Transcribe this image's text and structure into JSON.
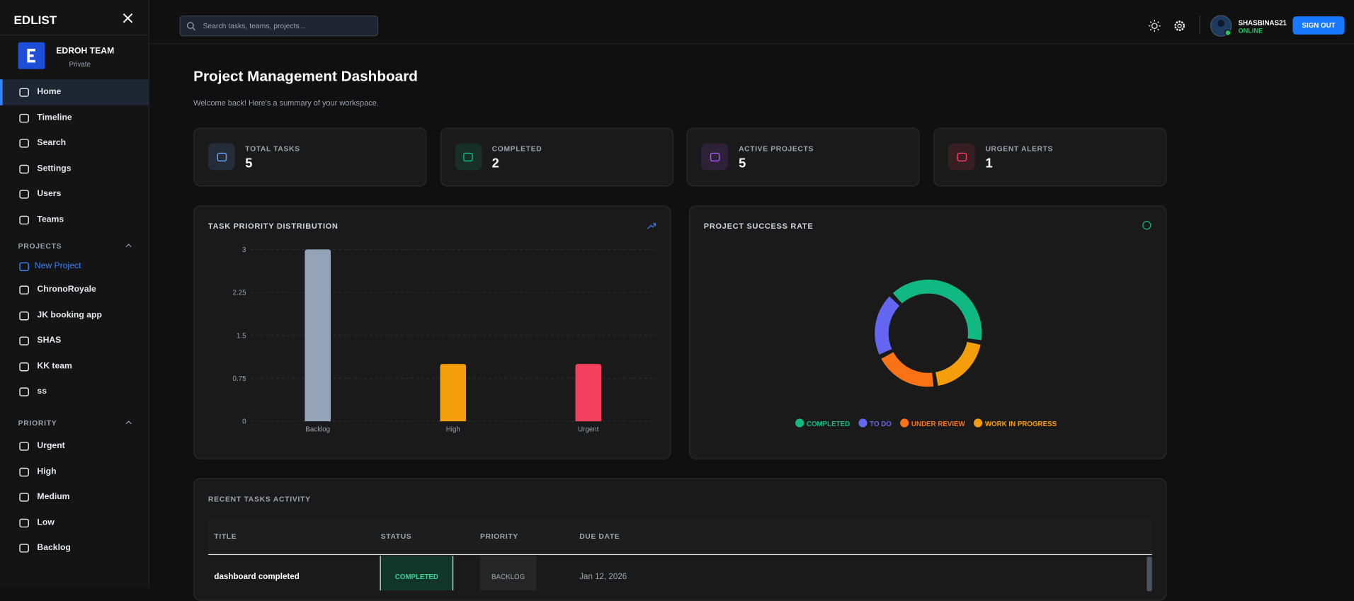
{
  "sidebar": {
    "brand": "EDLIST",
    "team": {
      "name": "EDROH TEAM",
      "visibility": "Private"
    },
    "nav": [
      "Home",
      "Timeline",
      "Search",
      "Settings",
      "Users",
      "Teams"
    ],
    "projects": {
      "heading": "PROJECTS",
      "new": "New Project",
      "items": [
        "ChronoRoyale",
        "JK booking app",
        "SHAS",
        "KK team",
        "ss"
      ]
    },
    "priority": {
      "heading": "PRIORITY",
      "items": [
        "Urgent",
        "High",
        "Medium",
        "Low",
        "Backlog"
      ]
    }
  },
  "header": {
    "search_placeholder": "Search tasks, teams, projects...",
    "user": "SHASBINAS21",
    "status": "ONLINE",
    "sign_out": "SIGN OUT"
  },
  "page": {
    "title": "Project Management Dashboard",
    "subtitle": "Welcome back! Here's a summary of your workspace."
  },
  "stats": [
    {
      "label": "TOTAL TASKS",
      "value": 5,
      "color": "#60a5fa"
    },
    {
      "label": "COMPLETED",
      "value": 2,
      "color": "#10b981"
    },
    {
      "label": "ACTIVE PROJECTS",
      "value": 5,
      "color": "#a855f7"
    },
    {
      "label": "URGENT ALERTS",
      "value": 1,
      "color": "#f43f5e"
    }
  ],
  "chart_data": [
    {
      "type": "bar",
      "title": "TASK PRIORITY DISTRIBUTION",
      "categories": [
        "Backlog",
        "High",
        "Urgent"
      ],
      "values": [
        3,
        1,
        1
      ],
      "colors": [
        "#94a3b8",
        "#f59e0b",
        "#f43f5e"
      ],
      "ylim": [
        0,
        3
      ],
      "yticks": [
        0,
        0.75,
        1.5,
        2.25,
        3
      ],
      "grid": true
    },
    {
      "type": "pie",
      "title": "PROJECT SUCCESS RATE",
      "categories": [
        "COMPLETED",
        "TO DO",
        "UNDER REVIEW",
        "WORK IN PROGRESS"
      ],
      "values": [
        2,
        1,
        1,
        1
      ],
      "colors": [
        "#10b981",
        "#6366f1",
        "#f97316",
        "#f59e0b"
      ],
      "donut": true
    }
  ],
  "table": {
    "title": "RECENT TASKS ACTIVITY",
    "columns": [
      "TITLE",
      "STATUS",
      "PRIORITY",
      "DUE DATE"
    ],
    "rows": [
      [
        "dashboard completed",
        "COMPLETED",
        "BACKLOG",
        "Jan 12, 2026"
      ]
    ]
  }
}
